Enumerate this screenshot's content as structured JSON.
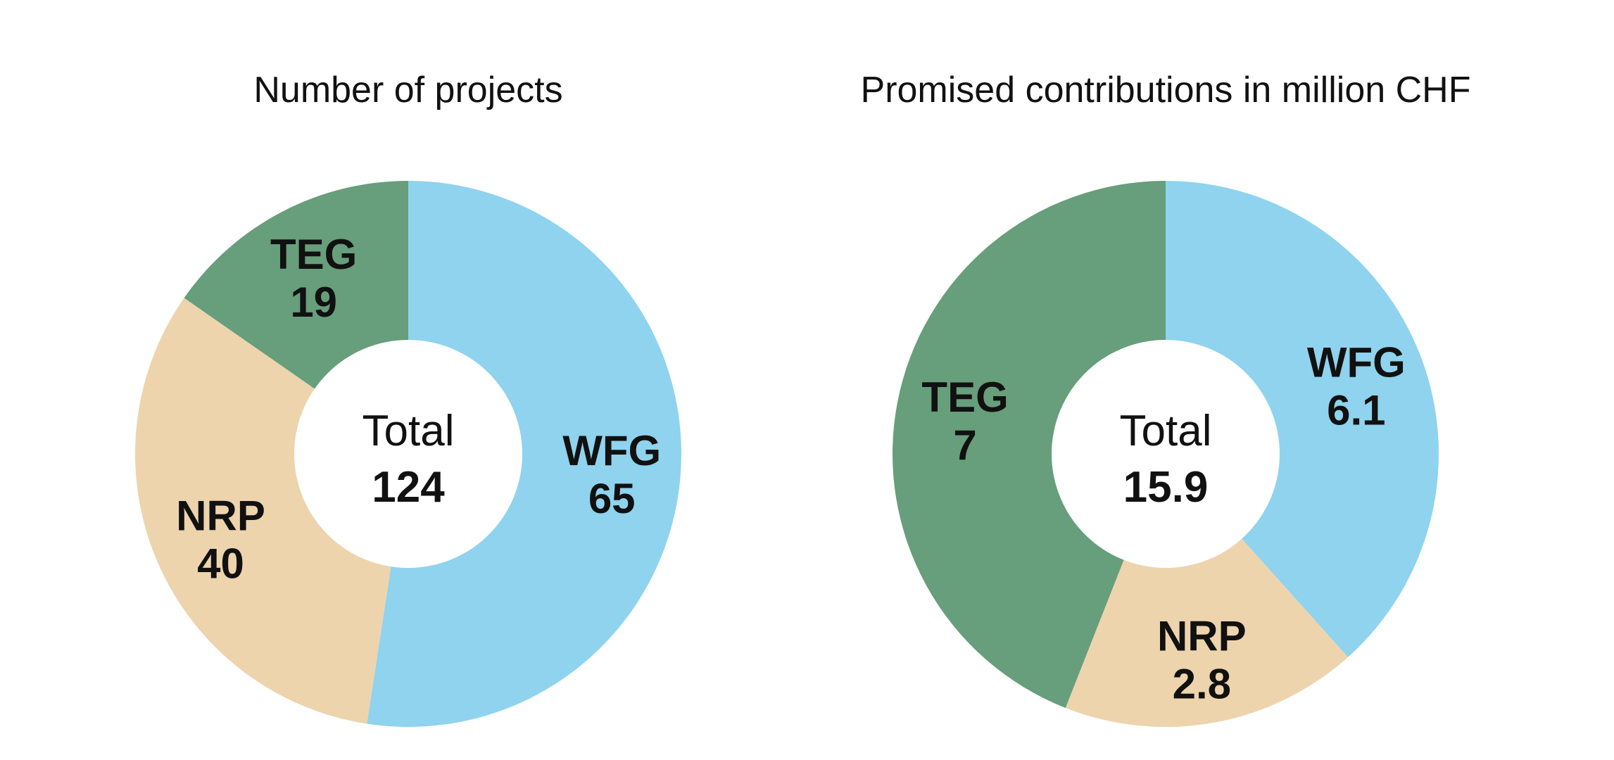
{
  "chart_data": [
    {
      "type": "pie",
      "title": "Number of projects",
      "center_label": "Total",
      "center_value": "124",
      "slices": [
        {
          "label": "WFG",
          "value": 65,
          "display": "65",
          "color": "#8fd3ee"
        },
        {
          "label": "NRP",
          "value": 40,
          "display": "40",
          "color": "#edd4ad"
        },
        {
          "label": "TEG",
          "value": 19,
          "display": "19",
          "color": "#679e7b"
        }
      ]
    },
    {
      "type": "pie",
      "title": "Promised contributions in million CHF",
      "center_label": "Total",
      "center_value": "15.9",
      "slices": [
        {
          "label": "WFG",
          "value": 6.1,
          "display": "6.1",
          "color": "#8fd3ee"
        },
        {
          "label": "NRP",
          "value": 2.8,
          "display": "2.8",
          "color": "#edd4ad"
        },
        {
          "label": "TEG",
          "value": 7,
          "display": "7",
          "color": "#679e7b"
        }
      ]
    }
  ]
}
